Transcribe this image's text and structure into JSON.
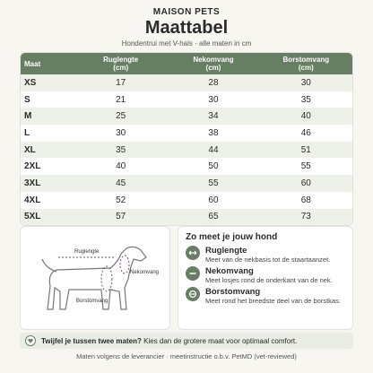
{
  "header": {
    "brand": "MAISON PETS",
    "title": "Maattabel",
    "subtitle": "Hondentrui met V-hals · alle maten in cm"
  },
  "table": {
    "header": [
      {
        "label": "Maat"
      },
      {
        "label": "Ruglengte",
        "unit": "(cm)"
      },
      {
        "label": "Nekomvang",
        "unit": "(cm)"
      },
      {
        "label": "Borstomvang",
        "unit": "(cm)"
      }
    ],
    "rows": [
      [
        "XS",
        17,
        28,
        30
      ],
      [
        "S",
        21,
        30,
        35
      ],
      [
        "M",
        25,
        34,
        40
      ],
      [
        "L",
        30,
        38,
        46
      ],
      [
        "XL",
        35,
        44,
        51
      ],
      [
        "2XL",
        40,
        50,
        55
      ],
      [
        "3XL",
        45,
        55,
        60
      ],
      [
        "4XL",
        52,
        60,
        68
      ],
      [
        "5XL",
        57,
        65,
        73
      ]
    ]
  },
  "diagram": {
    "labels": [
      "Ruglengte",
      "Nekomvang",
      "Borstomvang"
    ]
  },
  "howto": {
    "title": "Zo meet je jouw hond",
    "items": [
      {
        "title": "Ruglengte",
        "text": "Meet van de nekbasis tot de staartaanzet."
      },
      {
        "title": "Nekomvang",
        "text": "Meet losjes rond de onderkant van de nek."
      },
      {
        "title": "Borstomvang",
        "text": "Meet rond het breedste deel van de borstkas."
      }
    ]
  },
  "tip": {
    "bold": "Twijfel je tussen twee maten?",
    "text": "Kies dan de grotere maat voor optimaal comfort."
  },
  "footer": "Maten volgens de leverancier · meetinstructie o.b.v. PetMD (vet-reviewed)"
}
